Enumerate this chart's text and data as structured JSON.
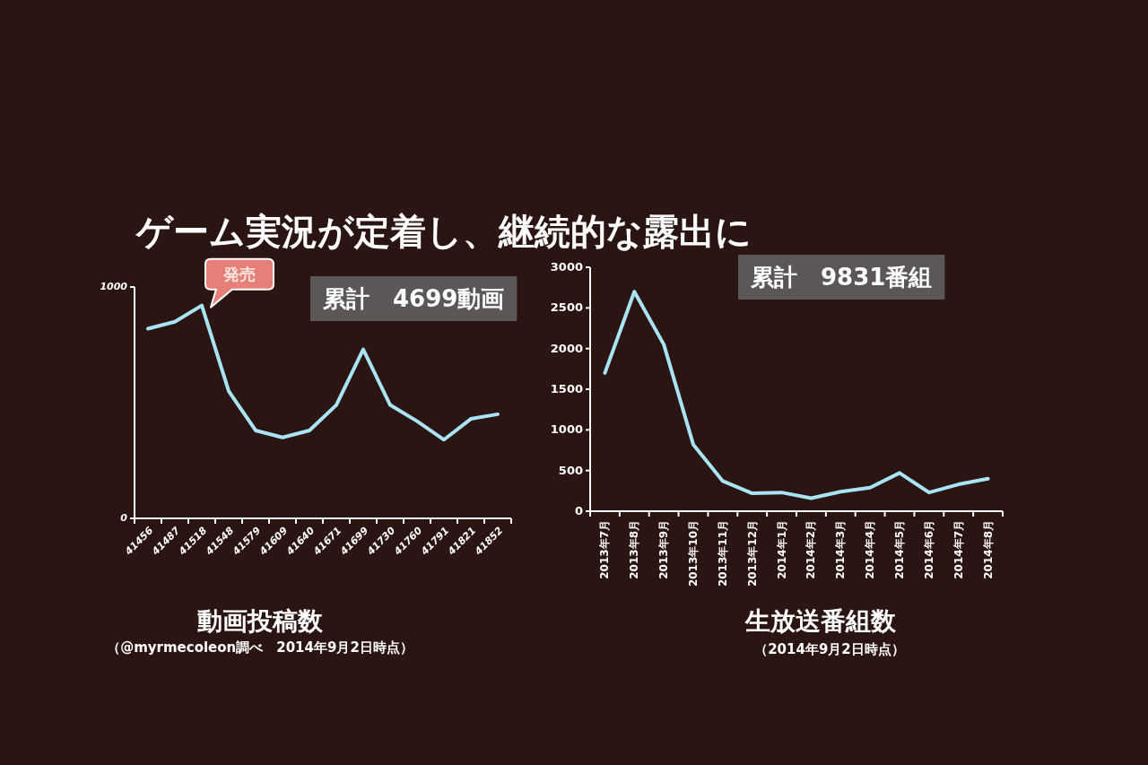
{
  "chart_data": [
    {
      "type": "line",
      "title": "動画投稿数",
      "subtitle": "（@myrmecoleon調べ　2014年9月2日時点）",
      "categories": [
        "41456",
        "41487",
        "41518",
        "41548",
        "41579",
        "41609",
        "41640",
        "41671",
        "41699",
        "41730",
        "41760",
        "41791",
        "41821",
        "41852"
      ],
      "series": [
        {
          "color": "#a8e4f4",
          "values": [
            820,
            850,
            920,
            550,
            380,
            350,
            380,
            490,
            730,
            490,
            420,
            340,
            430,
            450
          ]
        }
      ],
      "ylim": [
        0,
        1000
      ],
      "yticks": [
        0,
        1000
      ],
      "annotations": [
        "ゲーム実況が定着し、継続的な露出に",
        "累計　4699動画",
        {
          "text": "発売",
          "x": "41518",
          "y": 920
        }
      ]
    },
    {
      "type": "line",
      "title": "生放送番組数",
      "subtitle": "（2014年9月2日時点）",
      "categories": [
        "2013年7月",
        "2013年8月",
        "2013年9月",
        "2013年10月",
        "2013年11月",
        "2013年12月",
        "2014年1月",
        "2014年2月",
        "2014年3月",
        "2014年4月",
        "2014年5月",
        "2014年6月",
        "2014年7月",
        "2014年8月"
      ],
      "series": [
        {
          "color": "#a8e4f4",
          "values": [
            1700,
            2700,
            2050,
            820,
            370,
            220,
            230,
            160,
            240,
            290,
            470,
            230,
            330,
            400
          ]
        }
      ],
      "ylim": [
        0,
        3000
      ],
      "yticks": [
        0,
        500,
        1000,
        1500,
        2000,
        2500,
        3000
      ],
      "annotations": [
        "累計　9831番組"
      ]
    }
  ]
}
